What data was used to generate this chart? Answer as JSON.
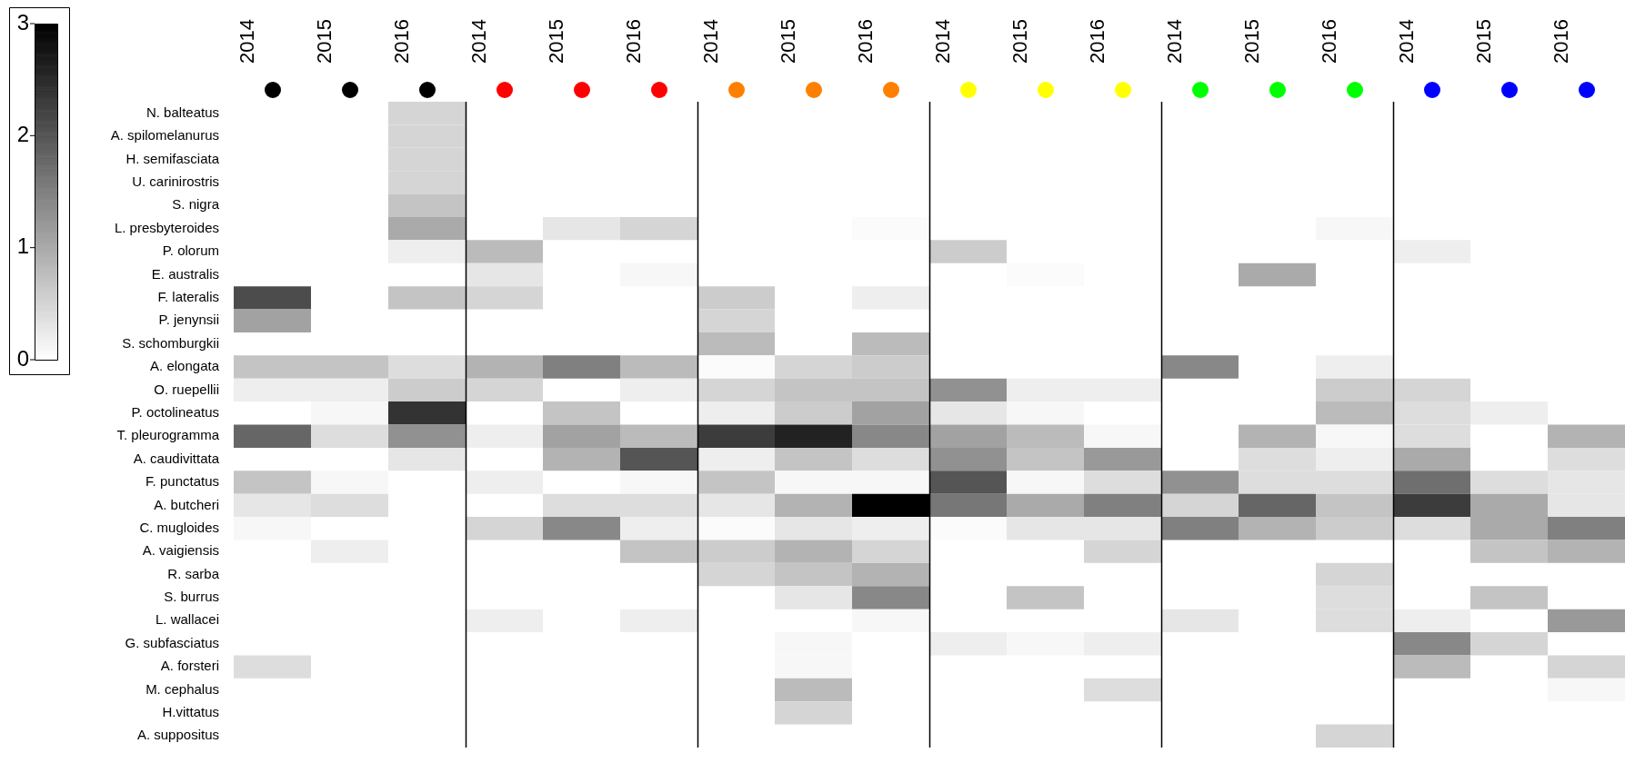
{
  "chart_data": {
    "type": "heatmap",
    "categories": [
      "2014",
      "2015",
      "2016",
      "2014",
      "2015",
      "2016",
      "2014",
      "2015",
      "2016",
      "2014",
      "2015",
      "2016",
      "2014",
      "2015",
      "2016",
      "2014",
      "2015",
      "2016"
    ],
    "y_categories": [
      "N. balteatus",
      "A. spilomelanurus",
      "H. semifasciata",
      "U. carinirostris",
      "S. nigra",
      "L. presbyteroides",
      "P. olorum",
      "E. australis",
      "F. lateralis",
      "P. jenynsii",
      "S. schomburgkii",
      "A. elongata",
      "O. ruepellii",
      "P. octolineatus",
      "T. pleurogramma",
      "A. caudivittata",
      "F. punctatus",
      "A. butcheri",
      "C. mugloides",
      "A. vaigiensis",
      "R. sarba",
      "S. burrus",
      "L. wallacei",
      "G. subfasciatus",
      "A. forsteri",
      "M. cephalus",
      "H.vittatus",
      "A. suppositus"
    ],
    "cells": [
      [
        null,
        null,
        0.5,
        null,
        null,
        null,
        null,
        null,
        null,
        null,
        null,
        null,
        null,
        null,
        null,
        null,
        null,
        null
      ],
      [
        null,
        null,
        0.5,
        null,
        null,
        null,
        null,
        null,
        null,
        null,
        null,
        null,
        null,
        null,
        null,
        null,
        null,
        null
      ],
      [
        null,
        null,
        0.5,
        null,
        null,
        null,
        null,
        null,
        null,
        null,
        null,
        null,
        null,
        null,
        null,
        null,
        null,
        null
      ],
      [
        null,
        null,
        0.5,
        null,
        null,
        null,
        null,
        null,
        null,
        null,
        null,
        null,
        null,
        null,
        null,
        null,
        null,
        null
      ],
      [
        null,
        null,
        0.7,
        null,
        null,
        null,
        null,
        null,
        null,
        null,
        null,
        null,
        null,
        null,
        null,
        null,
        null,
        null
      ],
      [
        null,
        null,
        1.0,
        null,
        0.3,
        0.5,
        null,
        null,
        0.05,
        null,
        null,
        null,
        null,
        null,
        0.1,
        null,
        null,
        null
      ],
      [
        null,
        null,
        0.2,
        0.8,
        null,
        null,
        null,
        null,
        null,
        0.6,
        null,
        null,
        null,
        null,
        null,
        0.2,
        null,
        null
      ],
      [
        null,
        null,
        null,
        0.3,
        null,
        0.1,
        null,
        null,
        null,
        null,
        0.05,
        null,
        null,
        1.0,
        null,
        null,
        null,
        null
      ],
      [
        2.1,
        null,
        0.7,
        0.5,
        null,
        null,
        0.6,
        null,
        0.2,
        null,
        null,
        null,
        null,
        null,
        null,
        null,
        null,
        null
      ],
      [
        1.1,
        null,
        null,
        null,
        null,
        null,
        0.5,
        null,
        null,
        null,
        null,
        null,
        null,
        null,
        null,
        null,
        null,
        null
      ],
      [
        null,
        null,
        null,
        null,
        null,
        null,
        0.8,
        null,
        0.8,
        null,
        null,
        null,
        null,
        null,
        null,
        null,
        null,
        null
      ],
      [
        0.7,
        0.7,
        0.4,
        0.9,
        1.5,
        0.8,
        0.05,
        0.5,
        0.6,
        null,
        null,
        null,
        1.4,
        null,
        0.2,
        null,
        null,
        null
      ],
      [
        0.2,
        0.2,
        0.6,
        0.5,
        null,
        0.2,
        0.5,
        0.7,
        0.7,
        1.3,
        0.2,
        0.2,
        null,
        null,
        0.6,
        0.5,
        null,
        null
      ],
      [
        null,
        0.1,
        2.4,
        null,
        0.7,
        null,
        0.2,
        0.6,
        1.1,
        0.3,
        0.1,
        null,
        null,
        null,
        0.8,
        0.4,
        0.2,
        null
      ],
      [
        1.8,
        0.4,
        1.3,
        0.2,
        1.1,
        0.8,
        2.3,
        2.6,
        1.4,
        1.1,
        0.8,
        0.1,
        null,
        0.9,
        0.1,
        0.4,
        null,
        0.9
      ],
      [
        null,
        null,
        0.3,
        null,
        0.9,
        2.0,
        0.2,
        0.7,
        0.4,
        1.3,
        0.7,
        1.2,
        null,
        0.4,
        0.2,
        1.0,
        null,
        0.4
      ],
      [
        0.7,
        0.1,
        null,
        0.2,
        null,
        0.1,
        0.7,
        0.1,
        0.1,
        2.0,
        0.1,
        0.4,
        1.3,
        0.4,
        0.4,
        1.7,
        0.4,
        0.3
      ],
      [
        0.3,
        0.4,
        null,
        null,
        0.4,
        0.4,
        0.3,
        0.9,
        3.0,
        1.6,
        1.0,
        1.5,
        0.5,
        1.8,
        0.7,
        2.3,
        1.0,
        0.3
      ],
      [
        0.1,
        null,
        null,
        0.5,
        1.4,
        0.2,
        0.05,
        0.3,
        0.2,
        0.05,
        0.3,
        0.3,
        1.5,
        0.9,
        0.6,
        0.4,
        1.0,
        1.5
      ],
      [
        null,
        0.2,
        null,
        null,
        null,
        0.7,
        0.6,
        0.9,
        0.5,
        null,
        null,
        0.5,
        null,
        null,
        null,
        null,
        0.7,
        0.9
      ],
      [
        null,
        null,
        null,
        null,
        null,
        null,
        0.5,
        0.7,
        0.9,
        null,
        null,
        null,
        null,
        null,
        0.5,
        null,
        null,
        null
      ],
      [
        null,
        null,
        null,
        null,
        null,
        null,
        null,
        0.3,
        1.4,
        null,
        0.7,
        null,
        null,
        null,
        0.4,
        null,
        0.7,
        null
      ],
      [
        null,
        null,
        null,
        0.2,
        null,
        0.2,
        null,
        null,
        0.1,
        null,
        null,
        null,
        0.3,
        null,
        0.4,
        0.2,
        null,
        1.2
      ],
      [
        null,
        null,
        null,
        null,
        null,
        null,
        null,
        0.1,
        null,
        0.2,
        0.1,
        0.2,
        null,
        null,
        null,
        1.4,
        0.5,
        null
      ],
      [
        0.4,
        null,
        null,
        null,
        null,
        null,
        null,
        0.1,
        null,
        null,
        null,
        null,
        null,
        null,
        null,
        0.8,
        null,
        0.5
      ],
      [
        null,
        null,
        null,
        null,
        null,
        null,
        null,
        0.8,
        null,
        null,
        null,
        0.4,
        null,
        null,
        null,
        null,
        null,
        0.1
      ],
      [
        null,
        null,
        null,
        null,
        null,
        null,
        null,
        0.5,
        null,
        null,
        null,
        null,
        null,
        null,
        null,
        null,
        null,
        null
      ],
      [
        null,
        null,
        null,
        null,
        null,
        null,
        null,
        null,
        null,
        null,
        null,
        null,
        null,
        null,
        0.5,
        null,
        null,
        null
      ]
    ],
    "clim": [
      0,
      3
    ],
    "cticks": [
      0,
      1,
      2,
      3
    ]
  }
}
